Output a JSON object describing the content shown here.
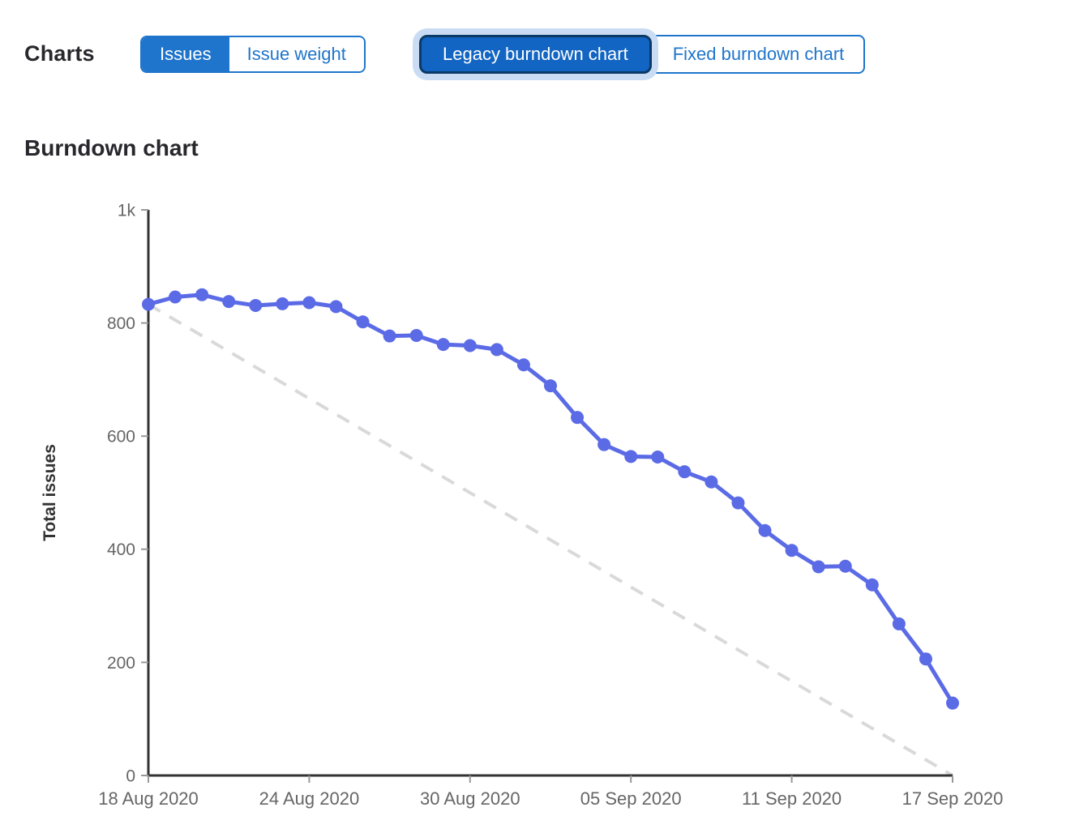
{
  "header": {
    "title": "Charts"
  },
  "toggles": {
    "metric": {
      "options": [
        {
          "label": "Issues",
          "selected": true
        },
        {
          "label": "Issue weight",
          "selected": false
        }
      ]
    },
    "chart_type": {
      "options": [
        {
          "label": "Legacy burndown chart",
          "selected": true
        },
        {
          "label": "Fixed burndown chart",
          "selected": false
        }
      ]
    }
  },
  "colors": {
    "primary_blue": "#1f75cb",
    "selected_fill": "#1265c2",
    "selected_border": "#0b3a66",
    "focus_halo": "#cadcf3",
    "heading_text": "#28272d"
  },
  "chart_data": {
    "type": "line",
    "title": "Burndown chart",
    "xlabel": "",
    "ylabel": "Total issues",
    "ylim": [
      0,
      1000
    ],
    "grid": false,
    "legend": "none",
    "dates": [
      "18 Aug 2020",
      "19 Aug 2020",
      "20 Aug 2020",
      "21 Aug 2020",
      "22 Aug 2020",
      "23 Aug 2020",
      "24 Aug 2020",
      "25 Aug 2020",
      "26 Aug 2020",
      "27 Aug 2020",
      "28 Aug 2020",
      "29 Aug 2020",
      "30 Aug 2020",
      "31 Aug 2020",
      "01 Sep 2020",
      "02 Sep 2020",
      "03 Sep 2020",
      "04 Sep 2020",
      "05 Sep 2020",
      "06 Sep 2020",
      "07 Sep 2020",
      "08 Sep 2020",
      "09 Sep 2020",
      "10 Sep 2020",
      "11 Sep 2020",
      "12 Sep 2020",
      "13 Sep 2020",
      "14 Sep 2020",
      "15 Sep 2020",
      "16 Sep 2020",
      "17 Sep 2020"
    ],
    "values": [
      833,
      846,
      850,
      838,
      831,
      834,
      836,
      829,
      802,
      777,
      778,
      762,
      760,
      753,
      726,
      689,
      633,
      585,
      564,
      563,
      537,
      519,
      482,
      433,
      398,
      369,
      370,
      337,
      268,
      206,
      128
    ],
    "y_ticks": [
      {
        "value": 0,
        "label": "0"
      },
      {
        "value": 200,
        "label": "200"
      },
      {
        "value": 400,
        "label": "400"
      },
      {
        "value": 600,
        "label": "600"
      },
      {
        "value": 800,
        "label": "800"
      },
      {
        "value": 1000,
        "label": "1k"
      }
    ],
    "x_ticks": [
      {
        "index": 0,
        "label": "18 Aug 2020"
      },
      {
        "index": 6,
        "label": "24 Aug 2020"
      },
      {
        "index": 12,
        "label": "30 Aug 2020"
      },
      {
        "index": 18,
        "label": "05 Sep 2020"
      },
      {
        "index": 24,
        "label": "11 Sep 2020"
      },
      {
        "index": 30,
        "label": "17 Sep 2020"
      }
    ],
    "guideline": {
      "name": "ideal-burndown",
      "style": "dashed",
      "start": 833,
      "end": 0
    },
    "colors": {
      "line": "#5b6be6",
      "ideal": "#d9d9d9",
      "axis": "#333333",
      "tick": "#999999",
      "tick_label": "#666666",
      "ylabel": "#333333"
    }
  }
}
